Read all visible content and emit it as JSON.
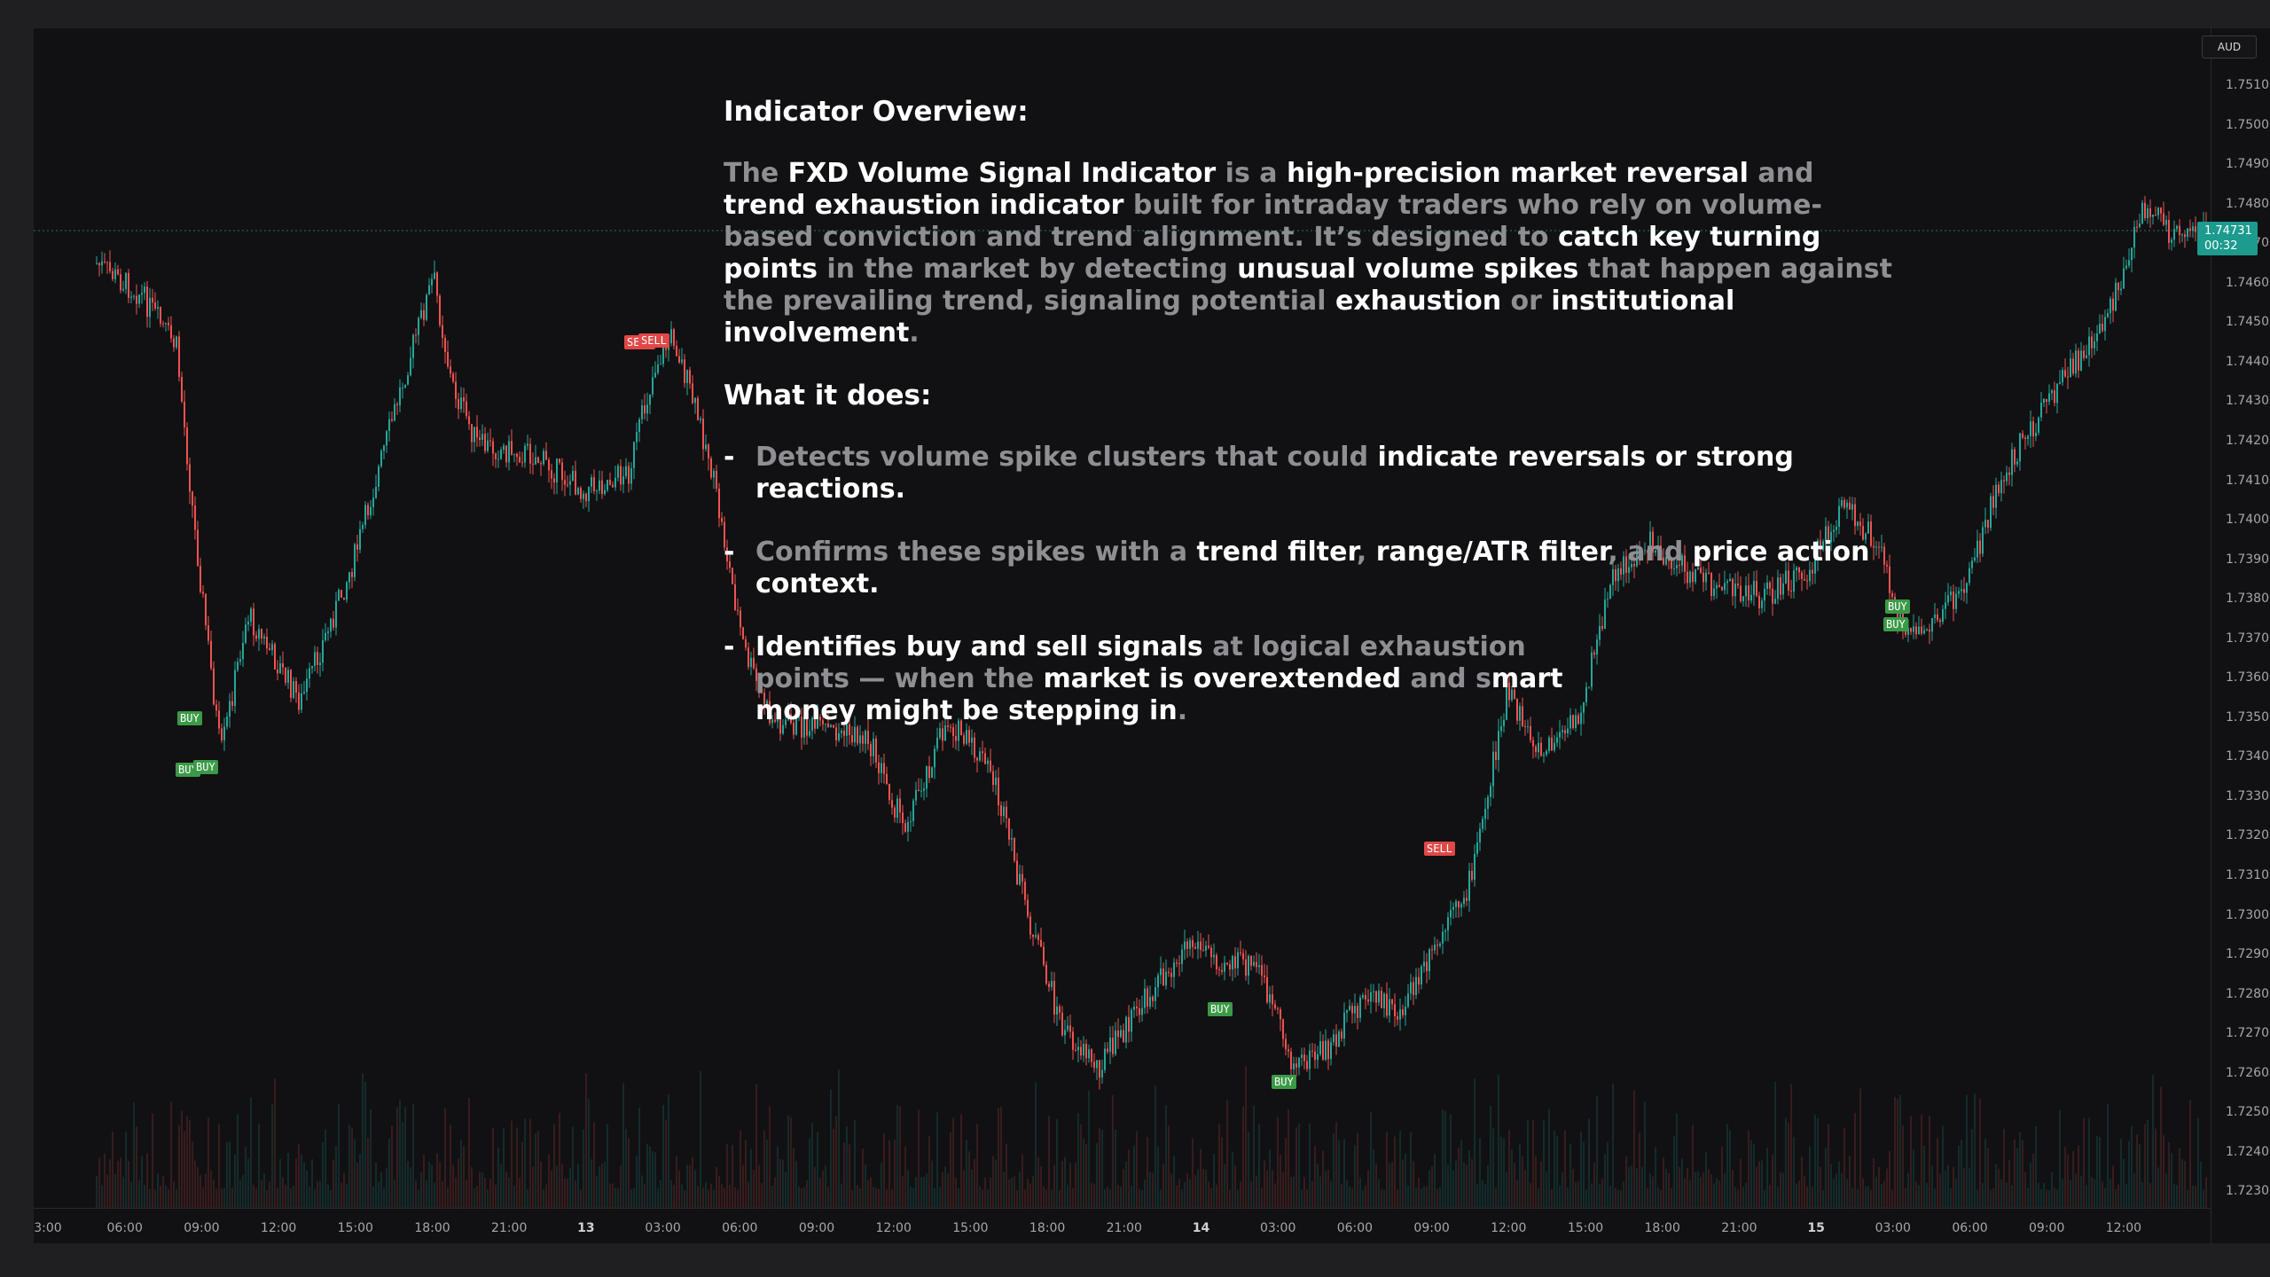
{
  "header": {
    "currency": "AUD"
  },
  "current_price": {
    "value": "1.74731",
    "countdown": "00:32"
  },
  "price_axis": [
    "1.75100",
    "1.75000",
    "1.74900",
    "1.74800",
    "1.74700",
    "1.74600",
    "1.74500",
    "1.74400",
    "1.74300",
    "1.74200",
    "1.74100",
    "1.74000",
    "1.73900",
    "1.73800",
    "1.73700",
    "1.73600",
    "1.73500",
    "1.73400",
    "1.73300",
    "1.73200",
    "1.73100",
    "1.73000",
    "1.72900",
    "1.72800",
    "1.72700",
    "1.72600",
    "1.72500",
    "1.72400",
    "1.72300"
  ],
  "time_axis": [
    "3:00",
    "06:00",
    "09:00",
    "12:00",
    "15:00",
    "18:00",
    "21:00",
    "13",
    "03:00",
    "06:00",
    "09:00",
    "12:00",
    "15:00",
    "18:00",
    "21:00",
    "14",
    "03:00",
    "06:00",
    "09:00",
    "12:00",
    "15:00",
    "18:00",
    "21:00",
    "15",
    "03:00",
    "06:00",
    "09:00",
    "12:00"
  ],
  "signals": [
    {
      "type": "buy",
      "label": "BUY"
    },
    {
      "type": "buy",
      "label": "BUY"
    },
    {
      "type": "buy",
      "label": "BUY"
    },
    {
      "type": "sell",
      "label": "SELL"
    },
    {
      "type": "sell",
      "label": "SELL"
    },
    {
      "type": "buy",
      "label": "BUY"
    },
    {
      "type": "buy",
      "label": "BUY"
    },
    {
      "type": "sell",
      "label": "SELL"
    },
    {
      "type": "buy",
      "label": "BUY"
    },
    {
      "type": "buy",
      "label": "BUY"
    }
  ],
  "overview": {
    "title": "Indicator Overview:",
    "intro": {
      "t1": "The ",
      "h1": "FXD Volume Signal Indicator",
      "t2": " is a ",
      "h2": "high-precision market reversal",
      "t3": " and ",
      "h3": "trend exhaustion indicator",
      "t4": " built for intraday traders who rely on volume-based conviction and trend alignment. It’s designed to ",
      "h4": "catch key turning points",
      "t5": " in the market by detecting ",
      "h5": "unusual volume spikes",
      "t6": " that happen against the prevailing trend, signaling potential ",
      "h6": "exhaustion",
      "t7": " or ",
      "h7": "institutional involvement",
      "t8": "."
    },
    "what_title": "What it does:",
    "dash": "-",
    "bullet1": {
      "t1": "Detects volume spike clusters that could ",
      "h1": "indicate reversals or strong reactions",
      "t2": "."
    },
    "bullet2": {
      "t1": "Confirms these spikes with a ",
      "h1": "trend filter",
      "t2": ", ",
      "h2": "range/ATR filter",
      "t3": ", and ",
      "h3": "price action context",
      "t4": "."
    },
    "bullet3": {
      "h1": "Identifies buy and sell signals",
      "t1": " at logical exhaustion points — when the ",
      "h2": "market is overextended",
      "t2": " and s",
      "h3": "mart money might be stepping in",
      "t3": "."
    }
  },
  "colors": {
    "up": "#26a69a",
    "down": "#ef5350",
    "buy": "#3b9a46",
    "sell": "#e04848",
    "price_tag": "#1c9b8e",
    "background": "#111113"
  }
}
